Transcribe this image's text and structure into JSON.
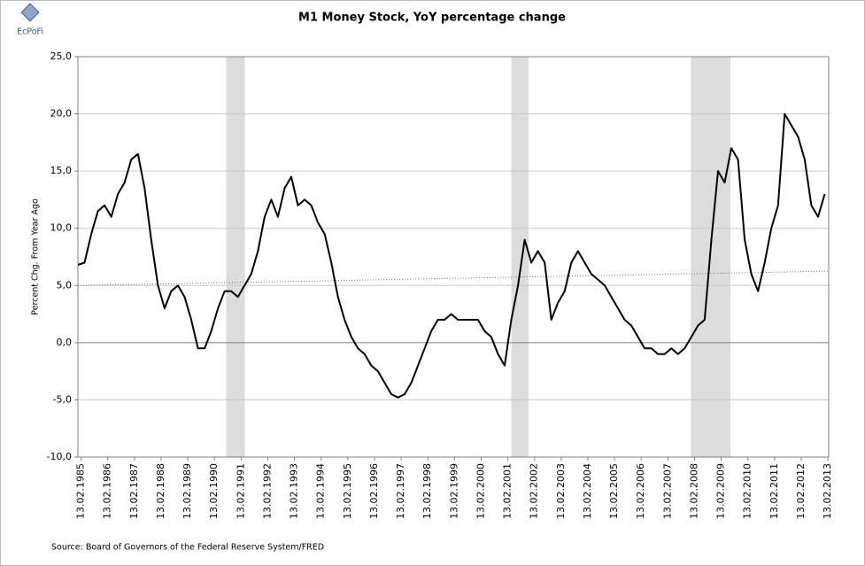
{
  "chart_data": {
    "type": "line",
    "title": "M1 Money Stock, YoY percentage change",
    "logo": "EcPoFi",
    "ylabel": "Percent Chg. From Year Ago",
    "source": "Source: Board of Governors of the Federal Reserve System/FRED",
    "xlim": [
      1985.0,
      2013.15
    ],
    "ylim": [
      -10,
      25
    ],
    "yticks": [
      {
        "value": -10,
        "label": "-10,0"
      },
      {
        "value": -5,
        "label": "-5,0"
      },
      {
        "value": 0,
        "label": "0,0"
      },
      {
        "value": 5,
        "label": "5,0"
      },
      {
        "value": 10,
        "label": "10,0"
      },
      {
        "value": 15,
        "label": "15,0"
      },
      {
        "value": 20,
        "label": "20,0"
      },
      {
        "value": 25,
        "label": "25,0"
      }
    ],
    "xticks": [
      {
        "value": 1985.12,
        "label": "13.02.1985"
      },
      {
        "value": 1986.12,
        "label": "13.02.1986"
      },
      {
        "value": 1987.12,
        "label": "13.02.1987"
      },
      {
        "value": 1988.12,
        "label": "13.02.1988"
      },
      {
        "value": 1989.12,
        "label": "13.02.1989"
      },
      {
        "value": 1990.12,
        "label": "13.02.1990"
      },
      {
        "value": 1991.12,
        "label": "13.02.1991"
      },
      {
        "value": 1992.12,
        "label": "13.02.1992"
      },
      {
        "value": 1993.12,
        "label": "13.02.1993"
      },
      {
        "value": 1994.12,
        "label": "13.02.1994"
      },
      {
        "value": 1995.12,
        "label": "13.02.1995"
      },
      {
        "value": 1996.12,
        "label": "13.02.1996"
      },
      {
        "value": 1997.12,
        "label": "13.02.1997"
      },
      {
        "value": 1998.12,
        "label": "13.02.1998"
      },
      {
        "value": 1999.12,
        "label": "13.02.1999"
      },
      {
        "value": 2000.12,
        "label": "13.02.2000"
      },
      {
        "value": 2001.12,
        "label": "13.02.2001"
      },
      {
        "value": 2002.12,
        "label": "13.02.2002"
      },
      {
        "value": 2003.12,
        "label": "13.02.2003"
      },
      {
        "value": 2004.12,
        "label": "13.02.2004"
      },
      {
        "value": 2005.12,
        "label": "13.02.2005"
      },
      {
        "value": 2006.12,
        "label": "13.02.2006"
      },
      {
        "value": 2007.12,
        "label": "13.02.2007"
      },
      {
        "value": 2008.12,
        "label": "13.02.2008"
      },
      {
        "value": 2009.12,
        "label": "13.02.2009"
      },
      {
        "value": 2010.12,
        "label": "13.02.2010"
      },
      {
        "value": 2011.12,
        "label": "13.02.2011"
      },
      {
        "value": 2012.12,
        "label": "13.02.2012"
      },
      {
        "value": 2013.12,
        "label": "13.02.2013"
      }
    ],
    "grid": true,
    "recessions": [
      [
        1990.56,
        1991.26
      ],
      [
        2001.25,
        2001.9
      ],
      [
        2007.98,
        2009.47
      ]
    ],
    "recession_color": "#dcdcdc",
    "trend": {
      "x": [
        1985.0,
        2013.15
      ],
      "values": [
        5.0,
        6.25
      ],
      "color": "#555555"
    },
    "x": [
      1985.0,
      1985.25,
      1985.5,
      1985.75,
      1986.0,
      1986.25,
      1986.5,
      1986.75,
      1987.0,
      1987.25,
      1987.5,
      1987.75,
      1988.0,
      1988.25,
      1988.5,
      1988.75,
      1989.0,
      1989.25,
      1989.5,
      1989.75,
      1990.0,
      1990.25,
      1990.5,
      1990.75,
      1991.0,
      1991.25,
      1991.5,
      1991.75,
      1992.0,
      1992.25,
      1992.5,
      1992.75,
      1993.0,
      1993.25,
      1993.5,
      1993.75,
      1994.0,
      1994.25,
      1994.5,
      1994.75,
      1995.0,
      1995.25,
      1995.5,
      1995.75,
      1996.0,
      1996.25,
      1996.5,
      1996.75,
      1997.0,
      1997.25,
      1997.5,
      1997.75,
      1998.0,
      1998.25,
      1998.5,
      1998.75,
      1999.0,
      1999.25,
      1999.5,
      1999.75,
      2000.0,
      2000.25,
      2000.5,
      2000.75,
      2001.0,
      2001.25,
      2001.5,
      2001.75,
      2002.0,
      2002.25,
      2002.5,
      2002.75,
      2003.0,
      2003.25,
      2003.5,
      2003.75,
      2004.0,
      2004.25,
      2004.5,
      2004.75,
      2005.0,
      2005.25,
      2005.5,
      2005.75,
      2006.0,
      2006.25,
      2006.5,
      2006.75,
      2007.0,
      2007.25,
      2007.5,
      2007.75,
      2008.0,
      2008.25,
      2008.5,
      2008.75,
      2009.0,
      2009.25,
      2009.5,
      2009.75,
      2010.0,
      2010.25,
      2010.5,
      2010.75,
      2011.0,
      2011.25,
      2011.5,
      2011.75,
      2012.0,
      2012.25,
      2012.5,
      2012.75,
      2013.0
    ],
    "series": [
      {
        "color": "#000000",
        "values": [
          6.8,
          7,
          9.5,
          11.5,
          12,
          11,
          13,
          14,
          16,
          16.5,
          13.5,
          9,
          5,
          3,
          4.5,
          5,
          4,
          2,
          -0.5,
          -0.5,
          1,
          3,
          4.5,
          4.5,
          4,
          5,
          6,
          8,
          11,
          12.5,
          11,
          13.5,
          14.5,
          12,
          12.5,
          12,
          10.5,
          9.5,
          7,
          4,
          2,
          0.5,
          -0.5,
          -1,
          -2,
          -2.5,
          -3.5,
          -4.5,
          -4.8,
          -4.5,
          -3.5,
          -2,
          -0.5,
          1,
          2,
          2,
          2.5,
          2,
          2,
          2,
          2,
          1,
          0.5,
          -1,
          -2,
          2,
          5,
          9,
          7,
          8,
          7,
          2,
          3.5,
          4.5,
          7,
          8,
          7,
          6,
          5.5,
          5,
          4,
          3,
          2,
          1.5,
          0.5,
          -0.5,
          -0.5,
          -1,
          -1,
          -0.5,
          -1,
          -0.5,
          0.5,
          1.5,
          2,
          9,
          15,
          14,
          17,
          16,
          9,
          6,
          4.5,
          7,
          10,
          12,
          20,
          19,
          18,
          16,
          12,
          11,
          13
        ]
      }
    ]
  }
}
